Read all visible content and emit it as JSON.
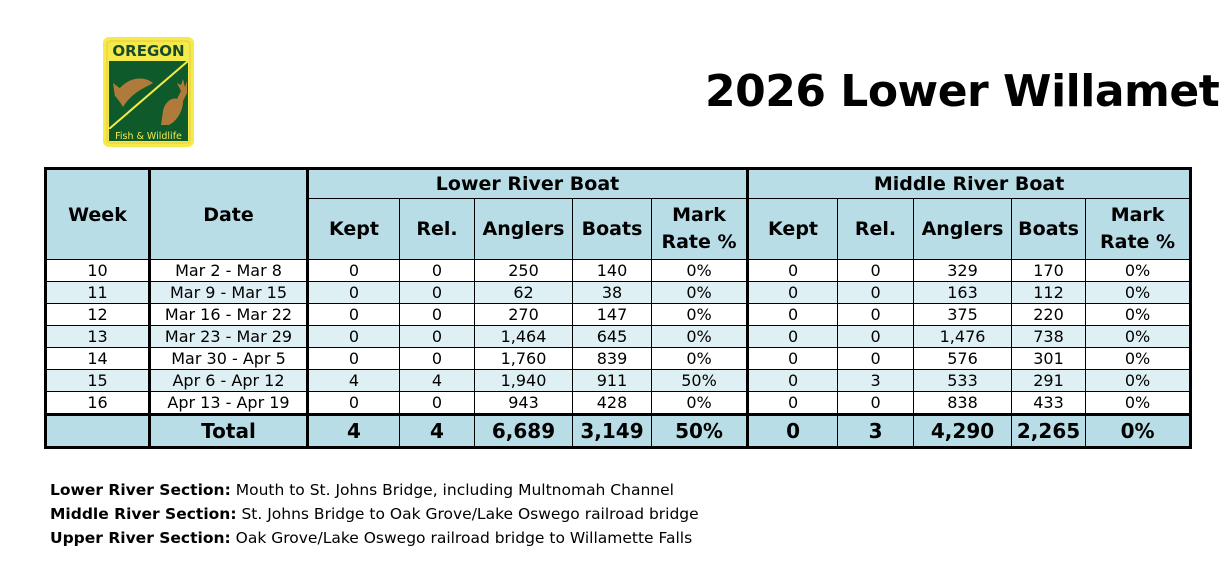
{
  "logo": {
    "top_text": "OREGON",
    "bottom_text": "Fish & Wildlife",
    "colors": {
      "background": "#f4ea4a",
      "panel": "#0e5a2a",
      "trim": "#e8c842"
    }
  },
  "title": "2026 Lower Willamet",
  "table": {
    "group_headers": {
      "lower": "Lower River Boat",
      "middle": "Middle River Boat"
    },
    "column_headers": {
      "week": "Week",
      "date": "Date",
      "kept": "Kept",
      "rel": "Rel.",
      "anglers": "Anglers",
      "boats": "Boats",
      "mark_line1": "Mark",
      "mark_line2": "Rate %"
    },
    "rows": [
      {
        "week": "10",
        "date": "Mar 2 - Mar 8",
        "l_kept": "0",
        "l_rel": "0",
        "l_anglers": "250",
        "l_boats": "140",
        "l_mark": "0%",
        "m_kept": "0",
        "m_rel": "0",
        "m_anglers": "329",
        "m_boats": "170",
        "m_mark": "0%"
      },
      {
        "week": "11",
        "date": "Mar 9 - Mar 15",
        "l_kept": "0",
        "l_rel": "0",
        "l_anglers": "62",
        "l_boats": "38",
        "l_mark": "0%",
        "m_kept": "0",
        "m_rel": "0",
        "m_anglers": "163",
        "m_boats": "112",
        "m_mark": "0%"
      },
      {
        "week": "12",
        "date": "Mar 16 - Mar 22",
        "l_kept": "0",
        "l_rel": "0",
        "l_anglers": "270",
        "l_boats": "147",
        "l_mark": "0%",
        "m_kept": "0",
        "m_rel": "0",
        "m_anglers": "375",
        "m_boats": "220",
        "m_mark": "0%"
      },
      {
        "week": "13",
        "date": "Mar 23 - Mar 29",
        "l_kept": "0",
        "l_rel": "0",
        "l_anglers": "1,464",
        "l_boats": "645",
        "l_mark": "0%",
        "m_kept": "0",
        "m_rel": "0",
        "m_anglers": "1,476",
        "m_boats": "738",
        "m_mark": "0%"
      },
      {
        "week": "14",
        "date": "Mar 30 - Apr 5",
        "l_kept": "0",
        "l_rel": "0",
        "l_anglers": "1,760",
        "l_boats": "839",
        "l_mark": "0%",
        "m_kept": "0",
        "m_rel": "0",
        "m_anglers": "576",
        "m_boats": "301",
        "m_mark": "0%"
      },
      {
        "week": "15",
        "date": "Apr 6 - Apr 12",
        "l_kept": "4",
        "l_rel": "4",
        "l_anglers": "1,940",
        "l_boats": "911",
        "l_mark": "50%",
        "m_kept": "0",
        "m_rel": "3",
        "m_anglers": "533",
        "m_boats": "291",
        "m_mark": "0%"
      },
      {
        "week": "16",
        "date": "Apr 13 - Apr 19",
        "l_kept": "0",
        "l_rel": "0",
        "l_anglers": "943",
        "l_boats": "428",
        "l_mark": "0%",
        "m_kept": "0",
        "m_rel": "0",
        "m_anglers": "838",
        "m_boats": "433",
        "m_mark": "0%"
      }
    ],
    "total": {
      "label": "Total",
      "l_kept": "4",
      "l_rel": "4",
      "l_anglers": "6,689",
      "l_boats": "3,149",
      "l_mark": "50%",
      "m_kept": "0",
      "m_rel": "3",
      "m_anglers": "4,290",
      "m_boats": "2,265",
      "m_mark": "0%"
    }
  },
  "notes": [
    {
      "label": "Lower River Section:",
      "text": " Mouth to St. Johns Bridge, including Multnomah Channel"
    },
    {
      "label": "Middle River Section:",
      "text": " St. Johns Bridge to Oak Grove/Lake Oswego railroad bridge"
    },
    {
      "label": "Upper River Section:",
      "text": " Oak Grove/Lake Oswego railroad bridge to Willamette Falls"
    }
  ]
}
